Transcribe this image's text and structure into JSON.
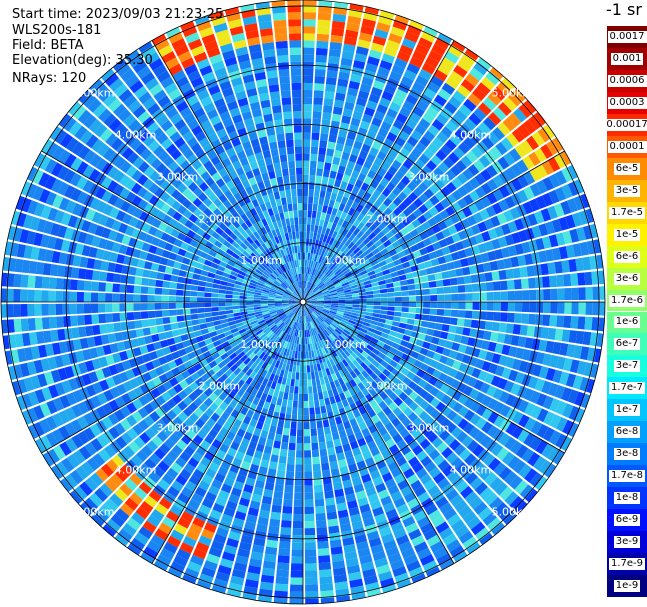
{
  "header": {
    "start_time": "Start time: 2023/09/03 21:23:25",
    "instrument": "WLS200s-181",
    "field": "Field: BETA",
    "elevation": "Elevation(deg): 35.30",
    "nrays": "NRays: 120"
  },
  "colorbar": {
    "unit_label": "-1 sr",
    "labels": [
      "0.0017",
      "0.001",
      "0.0006",
      "0.0003",
      "0.00017",
      "0.0001",
      "6e-5",
      "3e-5",
      "1.7e-5",
      "1e-5",
      "6e-6",
      "3e-6",
      "1.7e-6",
      "1e-6",
      "6e-7",
      "3e-7",
      "1.7e-7",
      "1e-7",
      "6e-8",
      "3e-8",
      "1.7e-8",
      "1e-8",
      "6e-9",
      "3e-9",
      "1.7e-9",
      "1e-9"
    ],
    "colors": [
      "#800000",
      "#a00000",
      "#c80000",
      "#e80000",
      "#ff2a00",
      "#ff5a00",
      "#ff8c00",
      "#ffb400",
      "#ffd800",
      "#fff200",
      "#e0ff18",
      "#b8ff40",
      "#90ff68",
      "#68ff90",
      "#40ffb8",
      "#18ffe0",
      "#00e8ff",
      "#00c4ff",
      "#00a0ff",
      "#007cff",
      "#0058ff",
      "#0034ff",
      "#0010ff",
      "#0000d8",
      "#0000a8",
      "#000080"
    ]
  },
  "chart_data": {
    "type": "heatmap",
    "projection": "polar PPI",
    "field": "BETA",
    "elevation_deg": 35.3,
    "n_rays": 120,
    "range_ring_labels": [
      "1.00km",
      "2.00km",
      "3.00km",
      "4.00km",
      "5.00km"
    ],
    "range_rings_km": [
      1,
      2,
      3,
      4,
      5
    ],
    "max_range_km": 5.1,
    "background_level": "1e-7 to 6e-7",
    "enhanced_sectors": [
      {
        "azimuth_deg": [
          330,
          60
        ],
        "range_km": [
          4.4,
          5.3
        ],
        "peak_level": "3e-5"
      },
      {
        "azimuth_deg": [
          200,
          230
        ],
        "range_km": [
          4.0,
          4.6
        ],
        "peak_level": "3e-5"
      }
    ],
    "color_scale": "log, 1e-9 to 0.0017 sr-1"
  }
}
